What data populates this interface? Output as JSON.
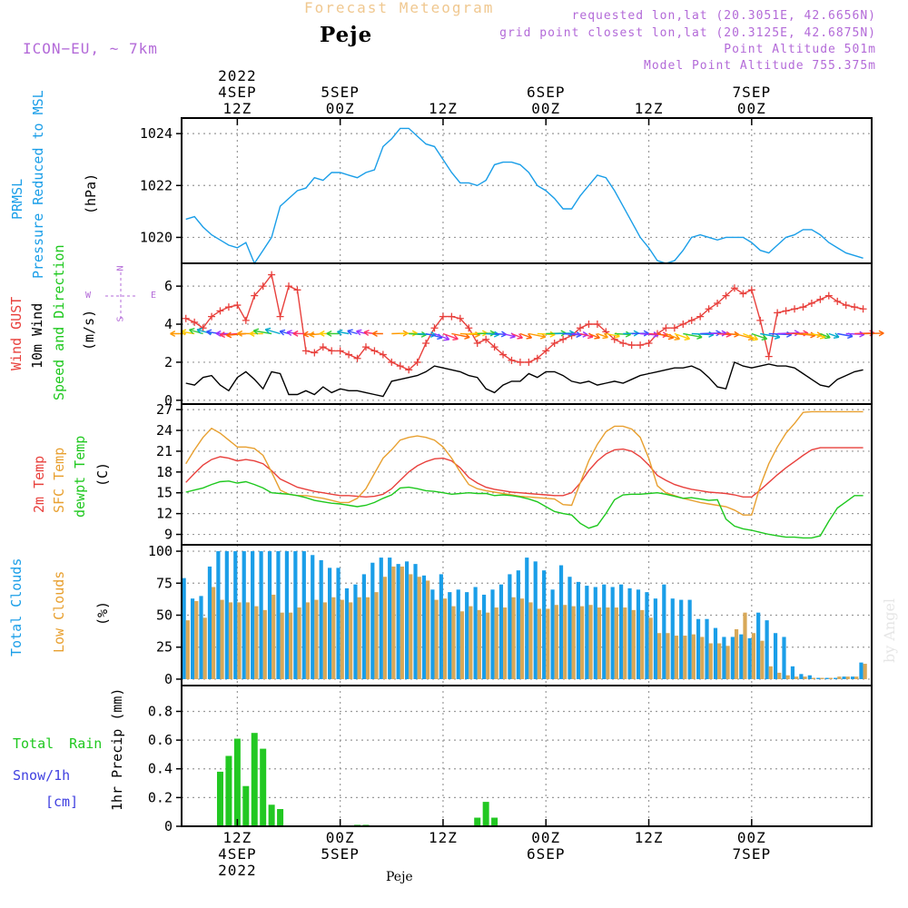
{
  "header": {
    "title": "Forecast Meteogram",
    "location": "Peje",
    "model": "ICON−EU, ~ 7km",
    "info_lines": [
      "requested lon,lat (20.3051E, 42.6656N)",
      "grid point closest lon,lat (20.3125E, 42.6875N)",
      "Point Altitude 501m",
      "Model Point Altitude 755.375m"
    ],
    "footer_location": "Peje",
    "watermark": "by Angel"
  },
  "colors": {
    "pressure": "#1a9ee8",
    "gust": "#e8403c",
    "wind": "#000000",
    "temp2m": "#e8403c",
    "sfc": "#e8a030",
    "dewpt": "#1ec81e",
    "total_clouds": "#1a9ee8",
    "low_clouds": "#d8a858",
    "rain": "#22c822",
    "snow": "#4040e0",
    "compass": "#b36ad8"
  },
  "time_axis": {
    "top_labels": [
      {
        "hour": 12,
        "lines": [
          "2022",
          "4SEP",
          "12Z"
        ]
      },
      {
        "hour": 24,
        "lines": [
          "5SEP",
          "00Z"
        ]
      },
      {
        "hour": 36,
        "lines": [
          "12Z"
        ]
      },
      {
        "hour": 48,
        "lines": [
          "6SEP",
          "00Z"
        ]
      },
      {
        "hour": 60,
        "lines": [
          "12Z"
        ]
      },
      {
        "hour": 72,
        "lines": [
          "7SEP",
          "00Z"
        ]
      }
    ],
    "bottom_labels": [
      {
        "hour": 12,
        "lines": [
          "12Z",
          "4SEP",
          "2022"
        ]
      },
      {
        "hour": 24,
        "lines": [
          "00Z",
          "5SEP"
        ]
      },
      {
        "hour": 36,
        "lines": [
          "12Z"
        ]
      },
      {
        "hour": 48,
        "lines": [
          "00Z",
          "6SEP"
        ]
      },
      {
        "hour": 60,
        "lines": [
          "12Z"
        ]
      },
      {
        "hour": 72,
        "lines": [
          "00Z",
          "7SEP"
        ]
      }
    ]
  },
  "panel_labels": {
    "pressure": {
      "lines": [
        "PRMSL",
        "Pressure Reduced to MSL"
      ],
      "unit": "(hPa)"
    },
    "wind": {
      "gust": "Wind GUST",
      "wind": "10m Wind",
      "dir": "Speed and Direction",
      "unit": "(m/s)",
      "compass": {
        "n": "N",
        "s": "S",
        "w": "W",
        "e": "E"
      }
    },
    "temp": {
      "t2m": "2m Temp",
      "sfc": "SFC Temp",
      "dew": "dewpt Temp",
      "unit": "(C)"
    },
    "clouds": {
      "total": "Total Clouds",
      "low": "Low Clouds",
      "unit": "(%)"
    },
    "precip": {
      "rain": "Total Rain",
      "snow": "Snow/1h",
      "snow_unit": "[cm]",
      "ylabel": "1hr Precip (mm)"
    }
  },
  "chart_data": [
    {
      "type": "line",
      "name": "pressure",
      "ylabel": "(hPa)",
      "yticks": [
        1020,
        1022,
        1024
      ],
      "ylim": [
        1019.0,
        1024.6
      ],
      "x": [
        6,
        7,
        8,
        9,
        10,
        11,
        12,
        13,
        14,
        15,
        16,
        17,
        18,
        19,
        20,
        21,
        22,
        23,
        24,
        25,
        26,
        27,
        28,
        29,
        30,
        31,
        32,
        33,
        34,
        35,
        36,
        37,
        38,
        39,
        40,
        41,
        42,
        43,
        44,
        45,
        46,
        47,
        48,
        49,
        50,
        51,
        52,
        53,
        54,
        55,
        56,
        57,
        58,
        59,
        60,
        61,
        62,
        63,
        64,
        65,
        66,
        67,
        68,
        69,
        70,
        71,
        72,
        73,
        74,
        75,
        76,
        77,
        78,
        79,
        80,
        81,
        82,
        83,
        84,
        85
      ],
      "values": [
        1020.7,
        1020.8,
        1020.4,
        1020.1,
        1019.9,
        1019.7,
        1019.6,
        1019.8,
        1019.0,
        1019.5,
        1020.0,
        1021.2,
        1021.5,
        1021.8,
        1021.9,
        1022.3,
        1022.2,
        1022.5,
        1022.5,
        1022.4,
        1022.3,
        1022.5,
        1022.6,
        1023.5,
        1023.8,
        1024.2,
        1024.2,
        1023.9,
        1023.6,
        1023.5,
        1023.0,
        1022.5,
        1022.1,
        1022.1,
        1022.0,
        1022.2,
        1022.8,
        1022.9,
        1022.9,
        1022.8,
        1022.5,
        1022.0,
        1021.8,
        1021.5,
        1021.1,
        1021.1,
        1021.6,
        1022.0,
        1022.4,
        1022.3,
        1021.8,
        1021.2,
        1020.6,
        1020.0,
        1019.6,
        1019.1,
        1019.0,
        1019.1,
        1019.5,
        1020.0,
        1020.1,
        1020.0,
        1019.9,
        1020.0,
        1020.0,
        1020.0,
        1019.8,
        1019.5,
        1019.4,
        1019.7,
        1020.0,
        1020.1,
        1020.3,
        1020.3,
        1020.1,
        1019.8,
        1019.6,
        1019.4,
        1019.3,
        1019.2
      ]
    },
    {
      "type": "line",
      "name": "wind",
      "ylabel": "(m/s)",
      "yticks": [
        0,
        2,
        4,
        6
      ],
      "ylim": [
        -0.2,
        7.2
      ],
      "x": [
        6,
        7,
        8,
        9,
        10,
        11,
        12,
        13,
        14,
        15,
        16,
        17,
        18,
        19,
        20,
        21,
        22,
        23,
        24,
        25,
        26,
        27,
        28,
        29,
        30,
        31,
        32,
        33,
        34,
        35,
        36,
        37,
        38,
        39,
        40,
        41,
        42,
        43,
        44,
        45,
        46,
        47,
        48,
        49,
        50,
        51,
        52,
        53,
        54,
        55,
        56,
        57,
        58,
        59,
        60,
        61,
        62,
        63,
        64,
        65,
        66,
        67,
        68,
        69,
        70,
        71,
        72,
        73,
        74,
        75,
        76,
        77,
        78,
        79,
        80,
        81,
        82,
        83,
        84,
        85
      ],
      "series": [
        {
          "name": "Wind GUST",
          "values": [
            4.3,
            4.1,
            3.8,
            4.4,
            4.7,
            4.9,
            5.0,
            4.2,
            5.5,
            6.0,
            6.6,
            4.4,
            6.0,
            5.8,
            2.6,
            2.5,
            2.8,
            2.6,
            2.6,
            2.4,
            2.2,
            2.8,
            2.6,
            2.4,
            2.0,
            1.8,
            1.6,
            2.0,
            3.0,
            3.8,
            4.4,
            4.4,
            4.3,
            3.8,
            3.0,
            3.2,
            2.8,
            2.4,
            2.1,
            2.0,
            2.0,
            2.2,
            2.6,
            3.0,
            3.2,
            3.4,
            3.8,
            4.0,
            4.0,
            3.6,
            3.2,
            3.0,
            2.9,
            2.9,
            3.0,
            3.5,
            3.8,
            3.8,
            4.0,
            4.2,
            4.4,
            4.8,
            5.1,
            5.5,
            5.9,
            5.6,
            5.8,
            4.2,
            2.3,
            4.6,
            4.7,
            4.8,
            4.9,
            5.1,
            5.3,
            5.5,
            5.2,
            5.0,
            4.9,
            4.8
          ]
        },
        {
          "name": "10m Wind",
          "values": [
            0.9,
            0.8,
            1.2,
            1.3,
            0.8,
            0.5,
            1.2,
            1.5,
            1.1,
            0.6,
            1.5,
            1.4,
            0.3,
            0.3,
            0.5,
            0.3,
            0.7,
            0.4,
            0.6,
            0.5,
            0.5,
            0.4,
            0.3,
            0.2,
            1.0,
            1.1,
            1.2,
            1.3,
            1.5,
            1.8,
            1.7,
            1.6,
            1.5,
            1.3,
            1.2,
            0.6,
            0.4,
            0.8,
            1.0,
            1.0,
            1.4,
            1.2,
            1.5,
            1.5,
            1.3,
            1.0,
            0.9,
            1.0,
            0.8,
            0.9,
            1.0,
            0.9,
            1.1,
            1.3,
            1.4,
            1.5,
            1.6,
            1.7,
            1.7,
            1.8,
            1.6,
            1.2,
            0.7,
            0.6,
            2.0,
            1.8,
            1.7,
            1.8,
            1.9,
            1.8,
            1.8,
            1.7,
            1.4,
            1.1,
            0.8,
            0.7,
            1.1,
            1.3,
            1.5,
            1.6
          ]
        }
      ]
    },
    {
      "type": "line",
      "name": "temperature",
      "ylabel": "(C)",
      "yticks": [
        9,
        12,
        15,
        18,
        21,
        24,
        27
      ],
      "ylim": [
        7.5,
        27.8
      ],
      "x": [
        6,
        7,
        8,
        9,
        10,
        11,
        12,
        13,
        14,
        15,
        16,
        17,
        18,
        19,
        20,
        21,
        22,
        23,
        24,
        25,
        26,
        27,
        28,
        29,
        30,
        31,
        32,
        33,
        34,
        35,
        36,
        37,
        38,
        39,
        40,
        41,
        42,
        43,
        44,
        45,
        46,
        47,
        48,
        49,
        50,
        51,
        52,
        53,
        54,
        55,
        56,
        57,
        58,
        59,
        60,
        61,
        62,
        63,
        64,
        65,
        66,
        67,
        68,
        69,
        70,
        71,
        72,
        73,
        74,
        75,
        76,
        77,
        78,
        79,
        80,
        81,
        82,
        83,
        84,
        85
      ],
      "series": [
        {
          "name": "2m Temp",
          "values": [
            16.5,
            17.8,
            19.0,
            19.8,
            20.2,
            20.0,
            19.6,
            19.8,
            19.6,
            19.2,
            18.2,
            17.0,
            16.4,
            15.8,
            15.5,
            15.2,
            15.0,
            14.8,
            14.6,
            14.6,
            14.5,
            14.4,
            14.5,
            14.8,
            15.6,
            16.8,
            18.0,
            18.9,
            19.5,
            19.9,
            20.0,
            19.6,
            18.6,
            17.2,
            16.4,
            15.8,
            15.5,
            15.3,
            15.1,
            15.0,
            14.9,
            14.8,
            14.7,
            14.6,
            14.6,
            15.0,
            16.4,
            18.2,
            19.6,
            20.6,
            21.2,
            21.3,
            21.0,
            20.2,
            19.0,
            17.5,
            16.8,
            16.2,
            15.8,
            15.5,
            15.3,
            15.1,
            15.0,
            14.9,
            14.7,
            14.4,
            14.4,
            15.4,
            16.5,
            17.6,
            18.6,
            19.5,
            20.4,
            21.2,
            21.5,
            21.5,
            21.5,
            21.5,
            21.5,
            21.5
          ]
        },
        {
          "name": "SFC Temp",
          "values": [
            19.2,
            21.2,
            23.0,
            24.3,
            23.6,
            22.6,
            21.6,
            21.6,
            21.4,
            20.4,
            18.0,
            15.4,
            14.8,
            14.6,
            14.6,
            14.4,
            14.2,
            13.9,
            13.6,
            13.6,
            14.2,
            15.6,
            17.8,
            20.0,
            21.2,
            22.6,
            23.0,
            23.2,
            23.0,
            22.6,
            21.6,
            20.0,
            18.0,
            16.2,
            15.6,
            15.3,
            15.1,
            14.9,
            14.7,
            14.5,
            14.4,
            14.3,
            14.2,
            14.1,
            13.3,
            13.2,
            16.4,
            19.6,
            22.0,
            23.8,
            24.6,
            24.6,
            24.2,
            23.0,
            20.0,
            16.0,
            15.0,
            14.6,
            14.2,
            13.9,
            13.6,
            13.4,
            13.2,
            13.0,
            12.5,
            11.8,
            11.8,
            16.0,
            19.2,
            21.6,
            23.6,
            25.0,
            26.6,
            26.7,
            26.7,
            26.7,
            26.7,
            26.7,
            26.7,
            26.7
          ]
        },
        {
          "name": "dewpt Temp",
          "values": [
            15.1,
            15.4,
            15.7,
            16.2,
            16.6,
            16.7,
            16.4,
            16.6,
            16.2,
            15.7,
            15.0,
            14.9,
            14.8,
            14.6,
            14.3,
            13.9,
            13.7,
            13.5,
            13.4,
            13.2,
            13.0,
            13.2,
            13.6,
            14.2,
            14.7,
            15.7,
            15.8,
            15.6,
            15.3,
            15.2,
            15.0,
            14.8,
            14.9,
            15.0,
            14.9,
            14.9,
            14.6,
            14.7,
            14.6,
            14.4,
            14.1,
            13.7,
            13.0,
            12.3,
            12.0,
            11.8,
            10.6,
            9.9,
            10.3,
            12.0,
            14.0,
            14.7,
            14.8,
            14.8,
            14.9,
            15.0,
            14.8,
            14.5,
            14.2,
            14.3,
            14.1,
            13.9,
            14.0,
            11.2,
            10.2,
            9.8,
            9.6,
            9.3,
            9.0,
            8.8,
            8.6,
            8.6,
            8.5,
            8.5,
            8.8,
            10.9,
            12.8,
            13.7,
            14.6,
            14.6
          ]
        }
      ]
    },
    {
      "type": "bar",
      "name": "clouds",
      "ylabel": "(%)",
      "yticks": [
        0,
        25,
        50,
        75,
        100
      ],
      "ylim": [
        -5,
        105
      ],
      "x": [
        6,
        7,
        8,
        9,
        10,
        11,
        12,
        13,
        14,
        15,
        16,
        17,
        18,
        19,
        20,
        21,
        22,
        23,
        24,
        25,
        26,
        27,
        28,
        29,
        30,
        31,
        32,
        33,
        34,
        35,
        36,
        37,
        38,
        39,
        40,
        41,
        42,
        43,
        44,
        45,
        46,
        47,
        48,
        49,
        50,
        51,
        52,
        53,
        54,
        55,
        56,
        57,
        58,
        59,
        60,
        61,
        62,
        63,
        64,
        65,
        66,
        67,
        68,
        69,
        70,
        71,
        72,
        73,
        74,
        75,
        76,
        77,
        78,
        79,
        80,
        81,
        82,
        83,
        84,
        85
      ],
      "series": [
        {
          "name": "Total Clouds",
          "values": [
            79,
            63,
            65,
            88,
            100,
            100,
            100,
            100,
            100,
            100,
            100,
            100,
            100,
            100,
            100,
            97,
            93,
            87,
            87,
            71,
            74,
            82,
            91,
            95,
            95,
            90,
            92,
            90,
            81,
            70,
            82,
            68,
            70,
            68,
            72,
            66,
            70,
            74,
            82,
            85,
            95,
            92,
            85,
            70,
            89,
            80,
            76,
            73,
            72,
            74,
            72,
            74,
            71,
            70,
            68,
            63,
            74,
            63,
            62,
            62,
            47,
            47,
            40,
            33,
            33,
            35,
            32,
            52,
            46,
            36,
            33,
            10,
            4,
            3,
            1,
            1,
            1,
            2,
            2,
            13
          ]
        },
        {
          "name": "Low Clouds",
          "values": [
            46,
            61,
            48,
            72,
            62,
            60,
            60,
            60,
            57,
            54,
            66,
            52,
            52,
            56,
            60,
            62,
            60,
            64,
            62,
            60,
            64,
            64,
            68,
            80,
            88,
            88,
            82,
            80,
            77,
            62,
            63,
            57,
            53,
            57,
            54,
            52,
            56,
            56,
            64,
            63,
            60,
            55,
            55,
            58,
            58,
            57,
            57,
            58,
            56,
            56,
            56,
            56,
            54,
            54,
            48,
            36,
            36,
            34,
            34,
            35,
            33,
            28,
            28,
            26,
            39,
            52,
            36,
            30,
            10,
            5,
            3,
            2,
            2,
            1,
            1,
            1,
            2,
            2,
            2,
            12
          ]
        }
      ]
    },
    {
      "type": "bar",
      "name": "precipitation",
      "ylabel": "1hr Precip (mm)",
      "yticks": [
        0,
        0.2,
        0.4,
        0.6,
        0.8
      ],
      "ylim": [
        0,
        0.98
      ],
      "x": [
        10,
        11,
        12,
        13,
        14,
        15,
        16,
        17,
        18,
        26,
        27,
        40,
        41,
        42
      ],
      "series": [
        {
          "name": "Total Rain",
          "values": [
            0.38,
            0.49,
            0.61,
            0.28,
            0.65,
            0.54,
            0.15,
            0.12,
            0,
            0.01,
            0.01,
            0.06,
            0.17,
            0.06
          ]
        }
      ]
    }
  ]
}
